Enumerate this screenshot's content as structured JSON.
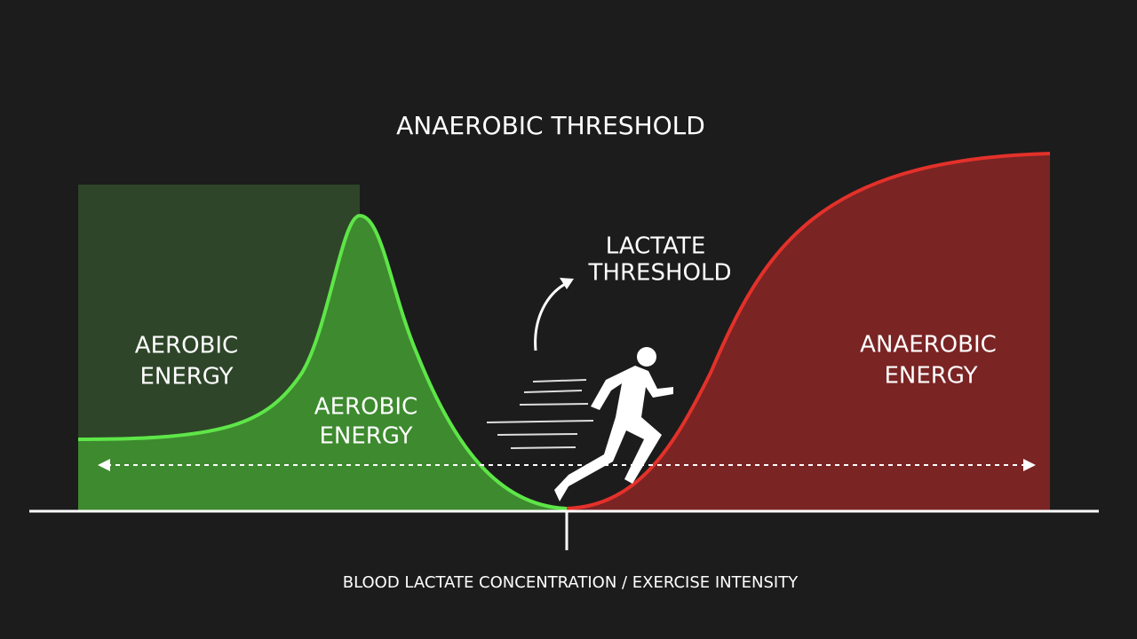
{
  "title": "ANAEROBIC THRESHOLD",
  "labels": {
    "aerobic_box": [
      "AEROBIC",
      "ENERGY"
    ],
    "aerobic_curve": [
      "AEROBIC",
      "ENERGY"
    ],
    "lactate_threshold": [
      "LACTATE",
      "THRESHOLD"
    ],
    "anaerobic": [
      "ANAEROBIC",
      "ENERGY"
    ]
  },
  "axis_label": "BLOOD LACTATE CONCENTRATION / EXERCISE INTENSITY"
}
